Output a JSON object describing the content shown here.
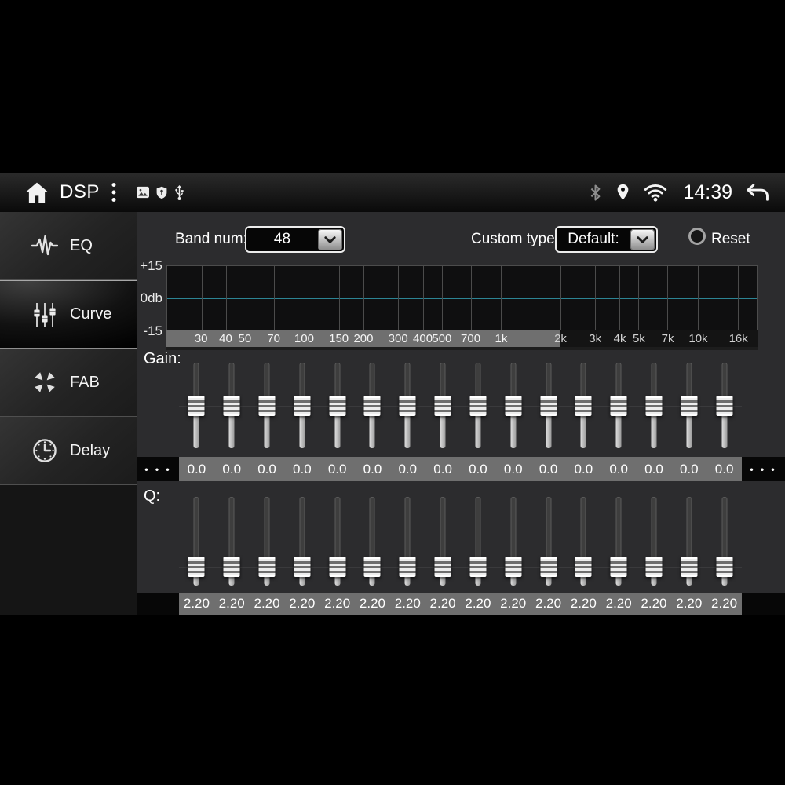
{
  "status_bar": {
    "title": "DSP",
    "time": "14:39",
    "left_icons": [
      "home-icon",
      "more-vertical-icon",
      "gallery-icon",
      "shield-icon",
      "usb-icon"
    ],
    "right_icons": [
      "bluetooth-icon",
      "location-icon",
      "wifi-icon",
      "back-icon"
    ],
    "colors": {
      "bluetooth": "#8d8d8d",
      "foreground": "#f5f5f5"
    }
  },
  "sidebar": {
    "items": [
      {
        "id": "eq",
        "label": "EQ",
        "icon": "waveform-icon",
        "selected": false
      },
      {
        "id": "curve",
        "label": "Curve",
        "icon": "sliders-icon",
        "selected": true
      },
      {
        "id": "fab",
        "label": "FAB",
        "icon": "fab-arrows-icon",
        "selected": false
      },
      {
        "id": "delay",
        "label": "Delay",
        "icon": "clock-icon",
        "selected": false
      }
    ]
  },
  "controls": {
    "band_num": {
      "label": "Band num:",
      "value": "48"
    },
    "custom_type": {
      "label": "Custom type:",
      "value": "Default:"
    },
    "reset": {
      "label": "Reset",
      "selected": false
    }
  },
  "chart_data": {
    "type": "line",
    "title": "EQ frequency response curve",
    "x_scale": "log",
    "xlim_hz": [
      20,
      20000
    ],
    "ylim_db": [
      -15,
      15
    ],
    "y_ticks": [
      "+15",
      "0db",
      "-15"
    ],
    "freq_ticks": [
      {
        "label": "30",
        "hz": 30
      },
      {
        "label": "40",
        "hz": 40
      },
      {
        "label": "50",
        "hz": 50
      },
      {
        "label": "70",
        "hz": 70
      },
      {
        "label": "100",
        "hz": 100
      },
      {
        "label": "150",
        "hz": 150
      },
      {
        "label": "200",
        "hz": 200
      },
      {
        "label": "300",
        "hz": 300
      },
      {
        "label": "400",
        "hz": 400
      },
      {
        "label": "500",
        "hz": 500
      },
      {
        "label": "700",
        "hz": 700
      },
      {
        "label": "1k",
        "hz": 1000
      },
      {
        "label": "2k",
        "hz": 2000
      },
      {
        "label": "3k",
        "hz": 3000
      },
      {
        "label": "4k",
        "hz": 4000
      },
      {
        "label": "5k",
        "hz": 5000
      },
      {
        "label": "7k",
        "hz": 7000
      },
      {
        "label": "10k",
        "hz": 10000
      },
      {
        "label": "16k",
        "hz": 16000
      }
    ],
    "curve": {
      "flat_db": 0,
      "color": "#2c8494"
    },
    "highlighted_range_hz": [
      20,
      2000
    ],
    "grid": true
  },
  "gain": {
    "label": "Gain:",
    "overflow_indicator": "• • •",
    "min_db": -15,
    "max_db": 15,
    "values": [
      "0.0",
      "0.0",
      "0.0",
      "0.0",
      "0.0",
      "0.0",
      "0.0",
      "0.0",
      "0.0",
      "0.0",
      "0.0",
      "0.0",
      "0.0",
      "0.0",
      "0.0",
      "0.0"
    ]
  },
  "q": {
    "label": "Q:",
    "values": [
      "2.20",
      "2.20",
      "2.20",
      "2.20",
      "2.20",
      "2.20",
      "2.20",
      "2.20",
      "2.20",
      "2.20",
      "2.20",
      "2.20",
      "2.20",
      "2.20",
      "2.20",
      "2.20"
    ]
  }
}
